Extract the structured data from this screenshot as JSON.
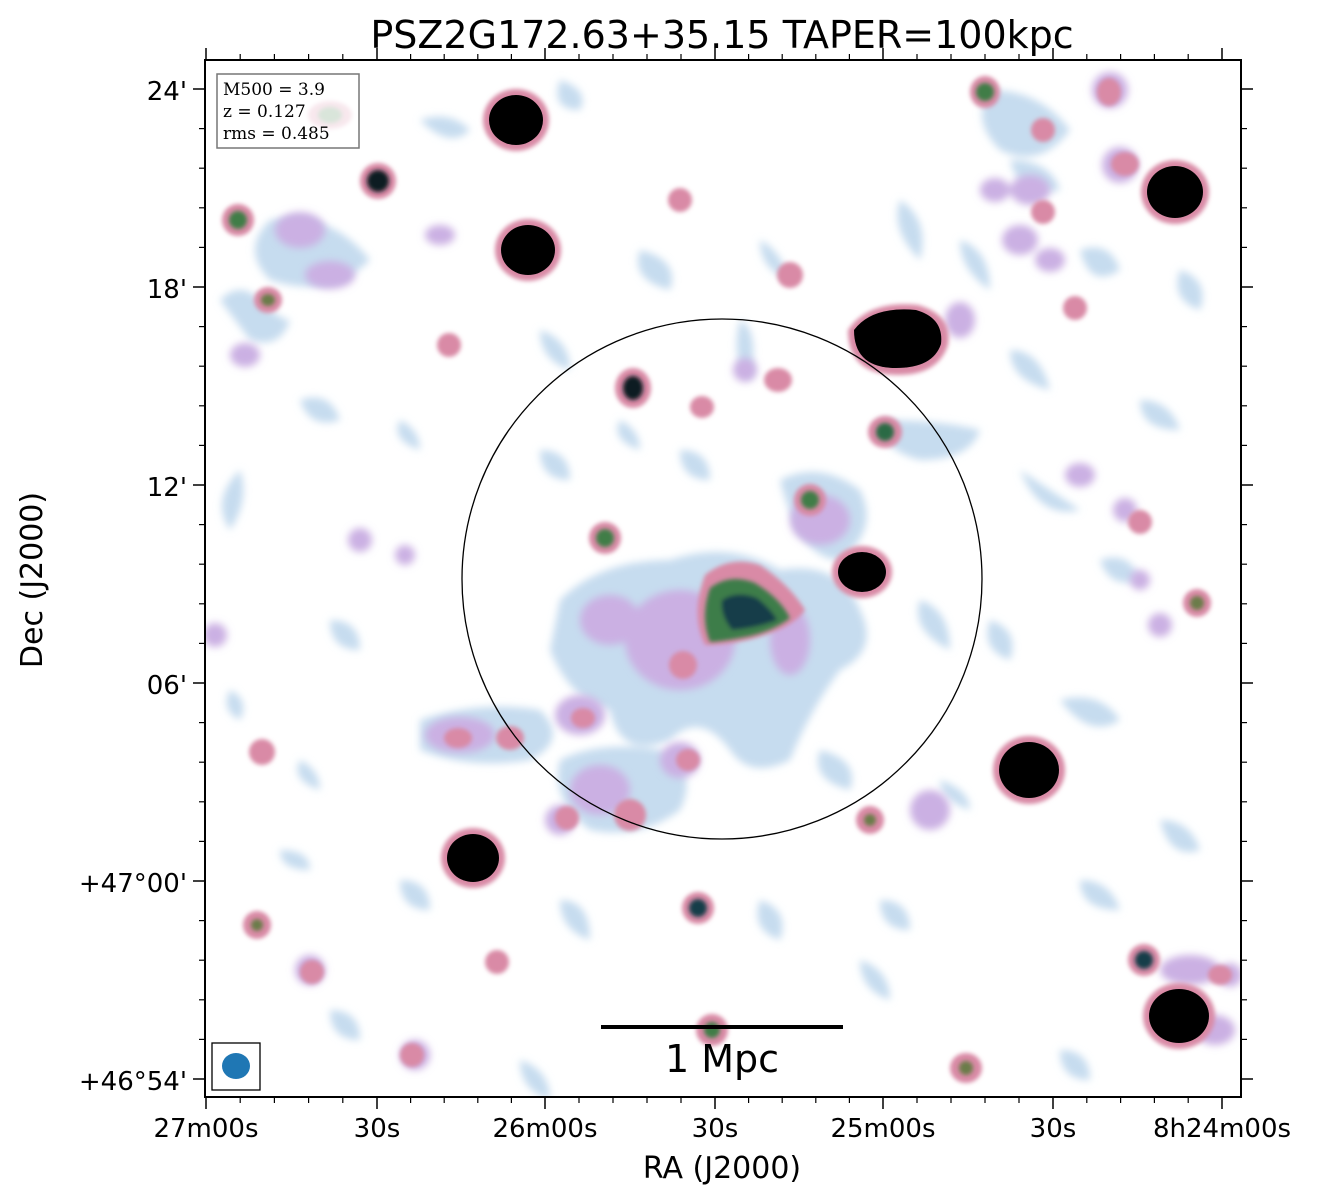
{
  "figure": {
    "title": "PSZ2G172.63+35.15 TAPER=100kpc",
    "x_axis_label": "RA (J2000)",
    "y_axis_label": "Dec (J2000)",
    "x_tick_labels": [
      "27m00s",
      "30s",
      "26m00s",
      "30s",
      "25m00s",
      "30s",
      "8h24m00s"
    ],
    "y_tick_labels": [
      "24'",
      "18'",
      "12'",
      "06'",
      "+47°00'",
      "+46°54'"
    ],
    "info_box": {
      "line1": "M500 = 3.9",
      "line2": "z = 0.127",
      "line3": "rms = 0.485"
    },
    "scale_bar_label": "1 Mpc",
    "colors": {
      "faint_emission": "#c2d6ec",
      "mid_emission": "#c9a3e0",
      "bright_emission": "#d98a9e",
      "peak_emission": "#2b7a3a",
      "saturated": "#000000",
      "beam": "#1f77b4"
    }
  }
}
